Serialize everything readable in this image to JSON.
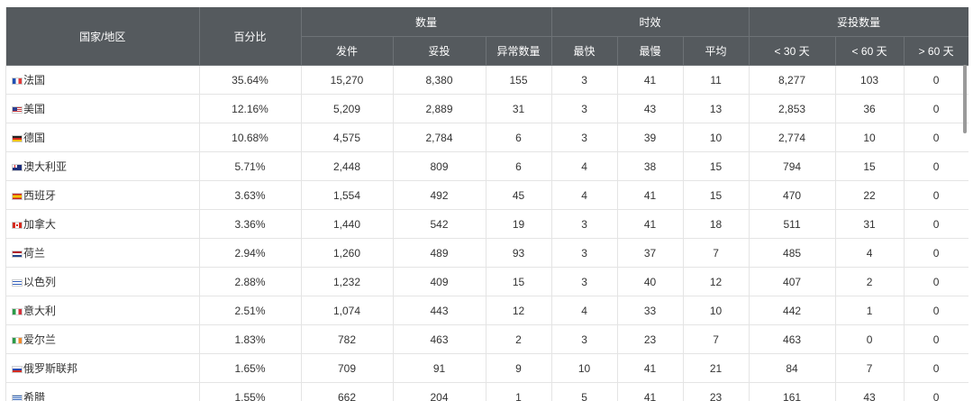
{
  "header": {
    "country": "国家/地区",
    "percent": "百分比",
    "group_quantity": "数量",
    "group_timing": "时效",
    "group_delivered": "妥投数量",
    "sent": "发件",
    "delivered": "妥投",
    "abnormal": "异常数量",
    "fastest": "最快",
    "slowest": "最慢",
    "average": "平均",
    "lt30": "< 30 天",
    "lt60": "< 60 天",
    "gt60": "> 60 天"
  },
  "rows": [
    {
      "flag": "france-flag-icon",
      "country": "法国",
      "percent": "35.64%",
      "sent": "15,270",
      "delivered": "8,380",
      "abnormal": "155",
      "fastest": "3",
      "slowest": "41",
      "average": "11",
      "lt30": "8,277",
      "lt60": "103",
      "gt60": "0"
    },
    {
      "flag": "usa-flag-icon",
      "country": "美国",
      "percent": "12.16%",
      "sent": "5,209",
      "delivered": "2,889",
      "abnormal": "31",
      "fastest": "3",
      "slowest": "43",
      "average": "13",
      "lt30": "2,853",
      "lt60": "36",
      "gt60": "0"
    },
    {
      "flag": "germany-flag-icon",
      "country": "德国",
      "percent": "10.68%",
      "sent": "4,575",
      "delivered": "2,784",
      "abnormal": "6",
      "fastest": "3",
      "slowest": "39",
      "average": "10",
      "lt30": "2,774",
      "lt60": "10",
      "gt60": "0"
    },
    {
      "flag": "australia-flag-icon",
      "country": "澳大利亚",
      "percent": "5.71%",
      "sent": "2,448",
      "delivered": "809",
      "abnormal": "6",
      "fastest": "4",
      "slowest": "38",
      "average": "15",
      "lt30": "794",
      "lt60": "15",
      "gt60": "0"
    },
    {
      "flag": "spain-flag-icon",
      "country": "西班牙",
      "percent": "3.63%",
      "sent": "1,554",
      "delivered": "492",
      "abnormal": "45",
      "fastest": "4",
      "slowest": "41",
      "average": "15",
      "lt30": "470",
      "lt60": "22",
      "gt60": "0"
    },
    {
      "flag": "canada-flag-icon",
      "country": "加拿大",
      "percent": "3.36%",
      "sent": "1,440",
      "delivered": "542",
      "abnormal": "19",
      "fastest": "3",
      "slowest": "41",
      "average": "18",
      "lt30": "511",
      "lt60": "31",
      "gt60": "0"
    },
    {
      "flag": "netherlands-flag-icon",
      "country": "荷兰",
      "percent": "2.94%",
      "sent": "1,260",
      "delivered": "489",
      "abnormal": "93",
      "fastest": "3",
      "slowest": "37",
      "average": "7",
      "lt30": "485",
      "lt60": "4",
      "gt60": "0"
    },
    {
      "flag": "israel-flag-icon",
      "country": "以色列",
      "percent": "2.88%",
      "sent": "1,232",
      "delivered": "409",
      "abnormal": "15",
      "fastest": "3",
      "slowest": "40",
      "average": "12",
      "lt30": "407",
      "lt60": "2",
      "gt60": "0"
    },
    {
      "flag": "italy-flag-icon",
      "country": "意大利",
      "percent": "2.51%",
      "sent": "1,074",
      "delivered": "443",
      "abnormal": "12",
      "fastest": "4",
      "slowest": "33",
      "average": "10",
      "lt30": "442",
      "lt60": "1",
      "gt60": "0"
    },
    {
      "flag": "ireland-flag-icon",
      "country": "爱尔兰",
      "percent": "1.83%",
      "sent": "782",
      "delivered": "463",
      "abnormal": "2",
      "fastest": "3",
      "slowest": "23",
      "average": "7",
      "lt30": "463",
      "lt60": "0",
      "gt60": "0"
    },
    {
      "flag": "russia-flag-icon",
      "country": "俄罗斯联邦",
      "percent": "1.65%",
      "sent": "709",
      "delivered": "91",
      "abnormal": "9",
      "fastest": "10",
      "slowest": "41",
      "average": "21",
      "lt30": "84",
      "lt60": "7",
      "gt60": "0"
    },
    {
      "flag": "greece-flag-icon",
      "country": "希腊",
      "percent": "1.55%",
      "sent": "662",
      "delivered": "204",
      "abnormal": "1",
      "fastest": "5",
      "slowest": "41",
      "average": "23",
      "lt30": "161",
      "lt60": "43",
      "gt60": "0"
    }
  ]
}
